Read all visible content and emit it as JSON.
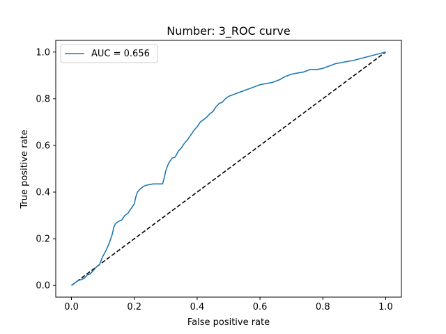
{
  "chart_data": {
    "type": "line",
    "title": "Number: 3_ROC curve",
    "xlabel": "False positive rate",
    "ylabel": "True positive rate",
    "xlim": [
      -0.05,
      1.05
    ],
    "ylim": [
      -0.05,
      1.05
    ],
    "xticks": [
      0.0,
      0.2,
      0.4,
      0.6,
      0.8,
      1.0
    ],
    "yticks": [
      0.0,
      0.2,
      0.4,
      0.6,
      0.8,
      1.0
    ],
    "xtick_labels": [
      "0.0",
      "0.2",
      "0.4",
      "0.6",
      "0.8",
      "1.0"
    ],
    "ytick_labels": [
      "0.0",
      "0.2",
      "0.4",
      "0.6",
      "0.8",
      "1.0"
    ],
    "grid": false,
    "legend_position": "upper-left",
    "series": [
      {
        "name": "AUC = 0.656",
        "color": "#1f77b4",
        "style": "solid",
        "points": [
          [
            0.0,
            0.0
          ],
          [
            0.01,
            0.01
          ],
          [
            0.02,
            0.02
          ],
          [
            0.03,
            0.025
          ],
          [
            0.04,
            0.03
          ],
          [
            0.05,
            0.045
          ],
          [
            0.06,
            0.05
          ],
          [
            0.07,
            0.065
          ],
          [
            0.08,
            0.08
          ],
          [
            0.09,
            0.09
          ],
          [
            0.095,
            0.11
          ],
          [
            0.1,
            0.125
          ],
          [
            0.11,
            0.15
          ],
          [
            0.12,
            0.18
          ],
          [
            0.125,
            0.2
          ],
          [
            0.13,
            0.22
          ],
          [
            0.135,
            0.25
          ],
          [
            0.14,
            0.265
          ],
          [
            0.15,
            0.275
          ],
          [
            0.16,
            0.28
          ],
          [
            0.17,
            0.3
          ],
          [
            0.18,
            0.31
          ],
          [
            0.19,
            0.33
          ],
          [
            0.2,
            0.35
          ],
          [
            0.205,
            0.38
          ],
          [
            0.21,
            0.4
          ],
          [
            0.22,
            0.415
          ],
          [
            0.23,
            0.425
          ],
          [
            0.24,
            0.43
          ],
          [
            0.26,
            0.435
          ],
          [
            0.29,
            0.435
          ],
          [
            0.295,
            0.46
          ],
          [
            0.3,
            0.49
          ],
          [
            0.305,
            0.51
          ],
          [
            0.31,
            0.525
          ],
          [
            0.32,
            0.545
          ],
          [
            0.33,
            0.55
          ],
          [
            0.34,
            0.575
          ],
          [
            0.35,
            0.59
          ],
          [
            0.36,
            0.61
          ],
          [
            0.37,
            0.625
          ],
          [
            0.38,
            0.645
          ],
          [
            0.39,
            0.665
          ],
          [
            0.4,
            0.68
          ],
          [
            0.41,
            0.7
          ],
          [
            0.42,
            0.71
          ],
          [
            0.43,
            0.72
          ],
          [
            0.44,
            0.735
          ],
          [
            0.45,
            0.745
          ],
          [
            0.46,
            0.765
          ],
          [
            0.47,
            0.78
          ],
          [
            0.48,
            0.785
          ],
          [
            0.49,
            0.8
          ],
          [
            0.5,
            0.81
          ],
          [
            0.52,
            0.82
          ],
          [
            0.54,
            0.83
          ],
          [
            0.56,
            0.84
          ],
          [
            0.58,
            0.85
          ],
          [
            0.6,
            0.86
          ],
          [
            0.62,
            0.865
          ],
          [
            0.64,
            0.87
          ],
          [
            0.66,
            0.88
          ],
          [
            0.68,
            0.895
          ],
          [
            0.7,
            0.905
          ],
          [
            0.72,
            0.91
          ],
          [
            0.74,
            0.915
          ],
          [
            0.76,
            0.925
          ],
          [
            0.78,
            0.925
          ],
          [
            0.8,
            0.93
          ],
          [
            0.82,
            0.94
          ],
          [
            0.84,
            0.95
          ],
          [
            0.86,
            0.955
          ],
          [
            0.88,
            0.96
          ],
          [
            0.9,
            0.965
          ],
          [
            1.0,
            1.0
          ]
        ]
      },
      {
        "name": "",
        "color": "#000000",
        "style": "dashed",
        "points": [
          [
            0.0,
            0.0
          ],
          [
            1.0,
            1.0
          ]
        ]
      }
    ]
  }
}
